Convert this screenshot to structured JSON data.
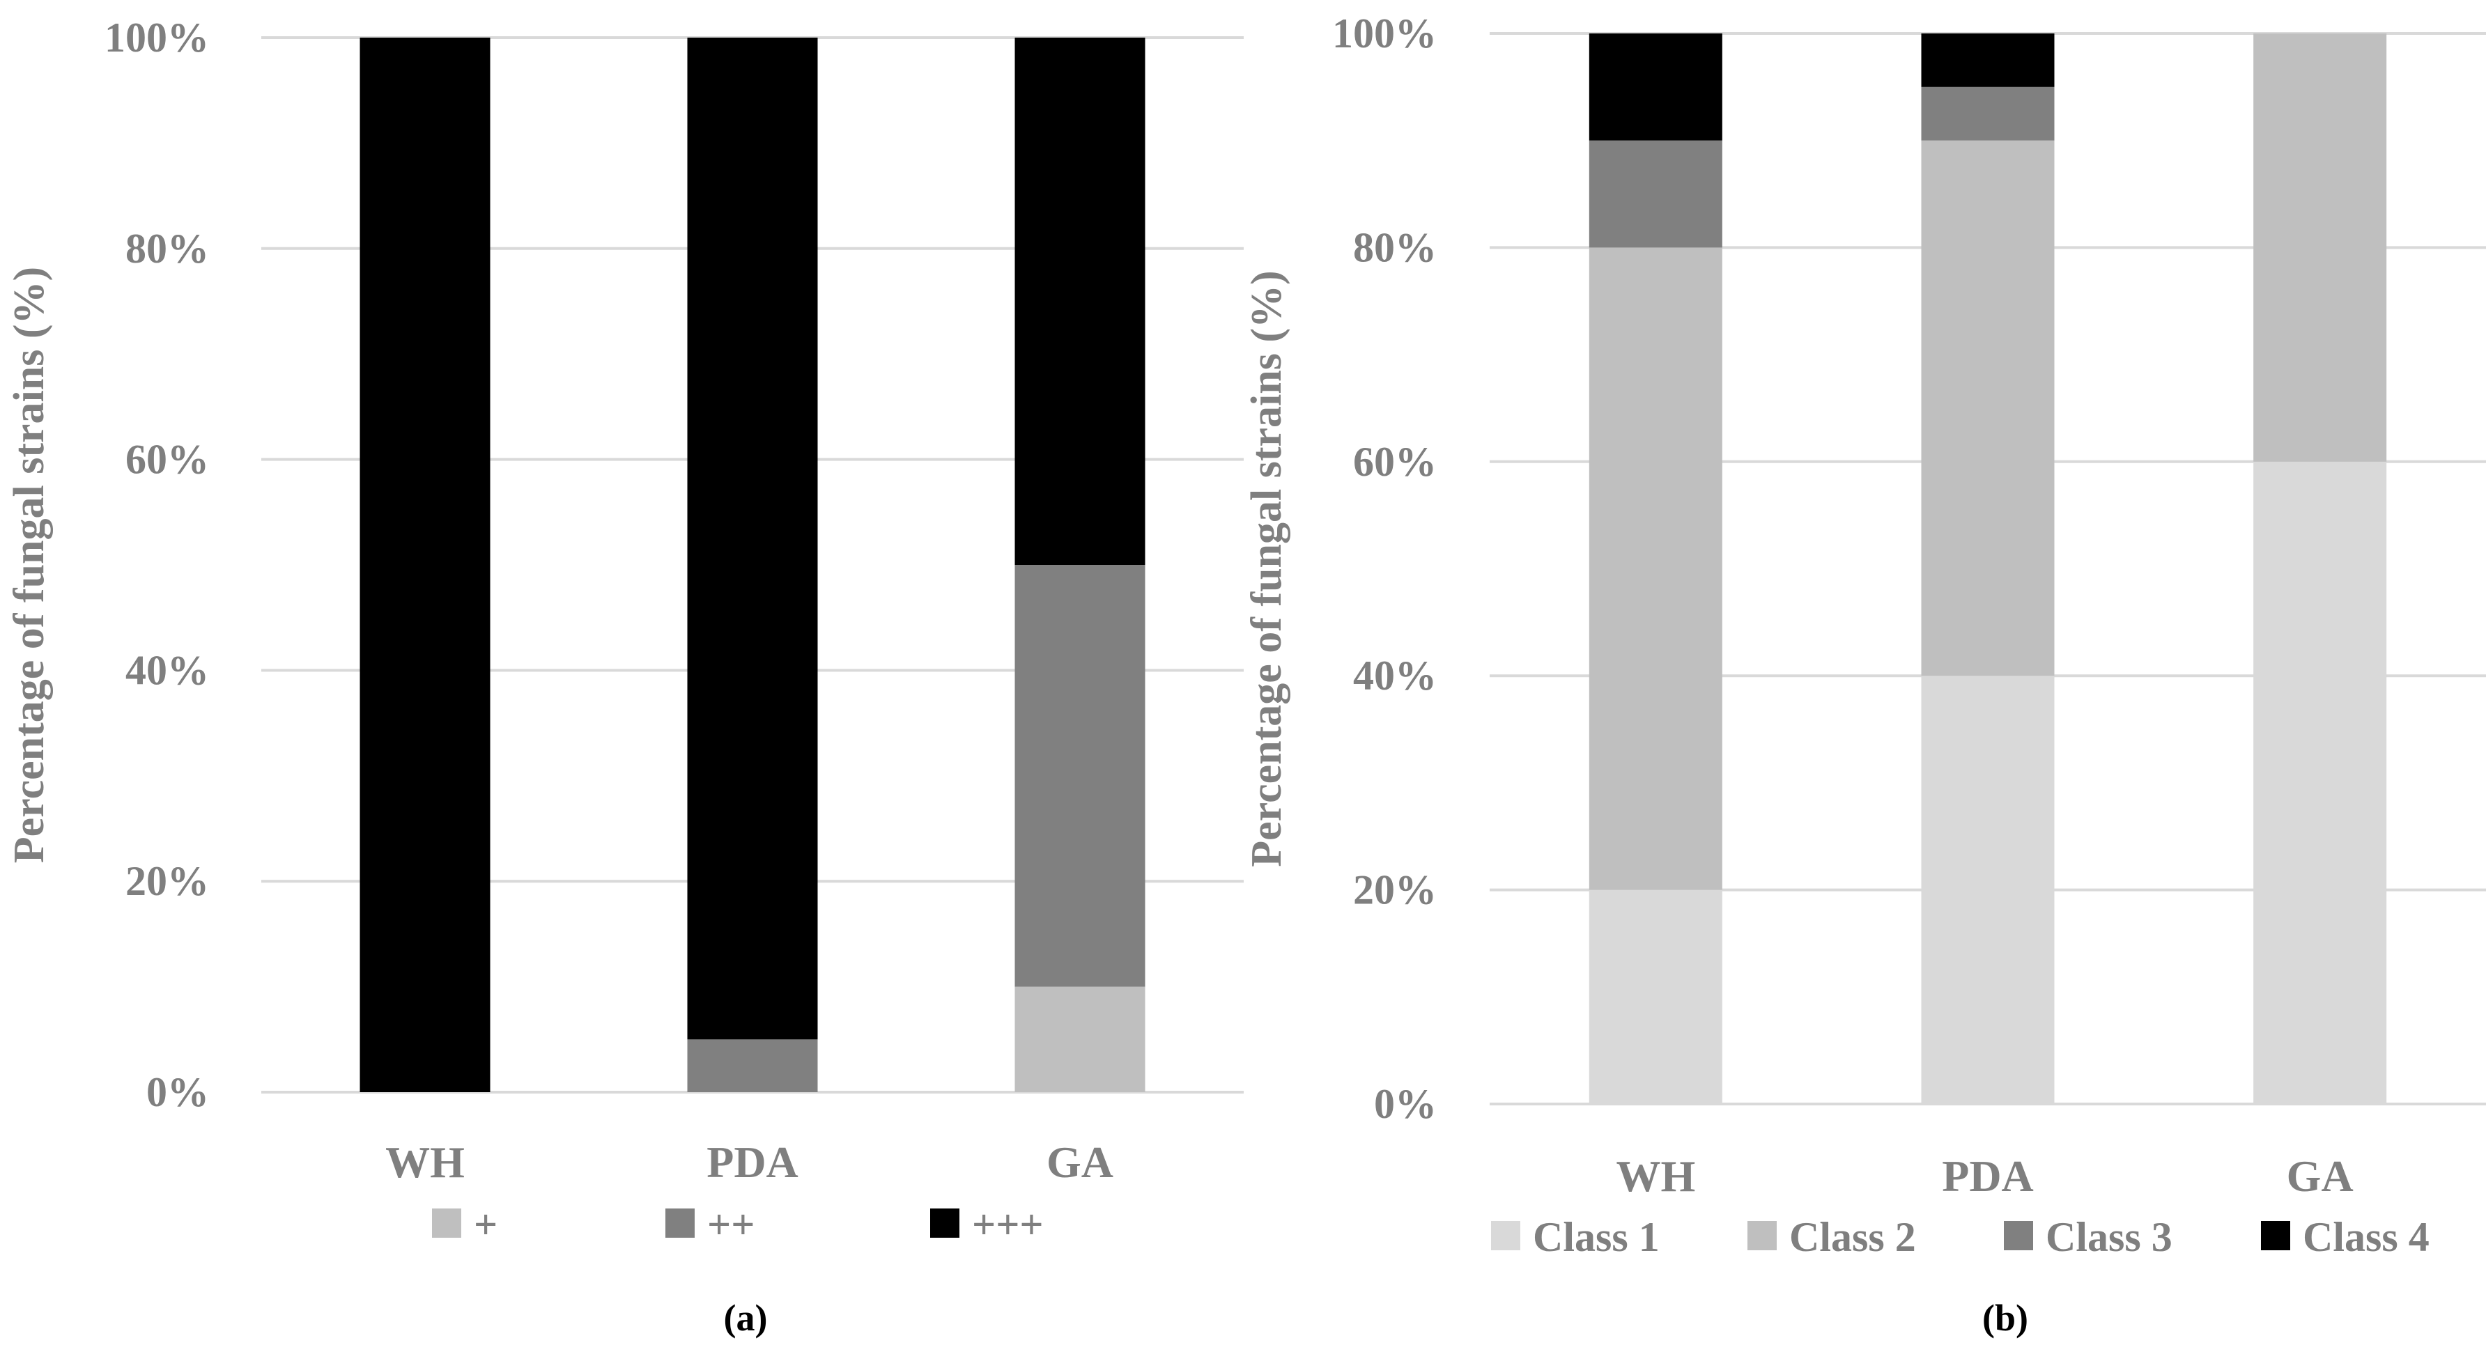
{
  "chart_data": [
    {
      "type": "bar",
      "stacked": true,
      "categories": [
        "WH",
        "PDA",
        "GA"
      ],
      "series": [
        {
          "name": "+",
          "color": "#bfbfbf",
          "values": [
            0,
            0,
            10
          ]
        },
        {
          "name": "++",
          "color": "#808080",
          "values": [
            0,
            5,
            40
          ]
        },
        {
          "name": "+++",
          "color": "#000000",
          "values": [
            100,
            95,
            50
          ]
        }
      ],
      "ylabel": "Percentage of fungal strains (%)",
      "yticks": [
        "0%",
        "20%",
        "40%",
        "60%",
        "80%",
        "100%"
      ],
      "ylim": [
        0,
        100
      ],
      "grid": true,
      "legend_position": "bottom",
      "panel_label": "(a)"
    },
    {
      "type": "bar",
      "stacked": true,
      "categories": [
        "WH",
        "PDA",
        "GA"
      ],
      "series": [
        {
          "name": "Class 1",
          "color": "#d9d9d9",
          "values": [
            20,
            40,
            60
          ]
        },
        {
          "name": "Class 2",
          "color": "#bfbfbf",
          "values": [
            60,
            50,
            40
          ]
        },
        {
          "name": "Class 3",
          "color": "#808080",
          "values": [
            10,
            5,
            0
          ]
        },
        {
          "name": "Class 4",
          "color": "#000000",
          "values": [
            10,
            5,
            0
          ]
        }
      ],
      "ylabel": "Percentage of fungal strains (%)",
      "yticks": [
        "0%",
        "20%",
        "40%",
        "60%",
        "80%",
        "100%"
      ],
      "ylim": [
        0,
        100
      ],
      "grid": true,
      "legend_position": "bottom",
      "panel_label": "(b)"
    }
  ]
}
